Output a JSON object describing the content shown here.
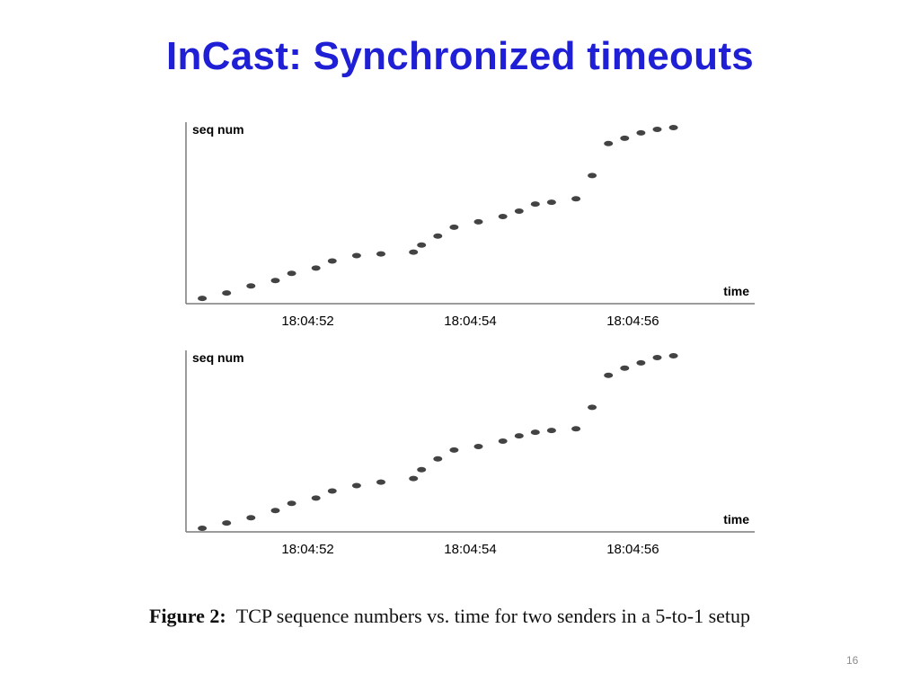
{
  "slide": {
    "title": "InCast: Synchronized timeouts",
    "page_number": "16",
    "title_color": "#1f1fd6"
  },
  "caption": {
    "label": "Figure 2:",
    "text": "TCP sequence numbers vs.  time for two senders in a 5-to-1 setup"
  },
  "chart_data": [
    {
      "type": "scatter",
      "ylabel": "seq num",
      "xlabel": "time",
      "x_ticks": [
        {
          "t": 1.5,
          "label": "18:04:52"
        },
        {
          "t": 3.5,
          "label": "18:04:54"
        },
        {
          "t": 5.5,
          "label": "18:04:56"
        }
      ],
      "xlim": [
        0,
        7
      ],
      "ylim": [
        0,
        100
      ],
      "grid": false,
      "series": [
        {
          "color": "#222222",
          "points": [
            [
              0.2,
              3
            ],
            [
              0.5,
              6
            ],
            [
              0.8,
              10
            ],
            [
              1.1,
              13
            ],
            [
              1.3,
              17
            ],
            [
              1.6,
              20
            ],
            [
              1.8,
              24
            ],
            [
              2.1,
              27
            ],
            [
              2.4,
              28
            ],
            [
              2.8,
              29
            ],
            [
              2.9,
              33
            ],
            [
              3.1,
              38
            ],
            [
              3.3,
              43
            ],
            [
              3.6,
              46
            ],
            [
              3.9,
              49
            ],
            [
              4.1,
              52
            ],
            [
              4.3,
              56
            ],
            [
              4.5,
              57
            ],
            [
              4.8,
              59
            ],
            [
              5.0,
              72
            ],
            [
              5.2,
              90
            ],
            [
              5.4,
              93
            ],
            [
              5.6,
              96
            ],
            [
              5.8,
              98
            ],
            [
              6.0,
              99
            ]
          ]
        }
      ]
    },
    {
      "type": "scatter",
      "ylabel": "seq num",
      "xlabel": "time",
      "x_ticks": [
        {
          "t": 1.5,
          "label": "18:04:52"
        },
        {
          "t": 3.5,
          "label": "18:04:54"
        },
        {
          "t": 5.5,
          "label": "18:04:56"
        }
      ],
      "xlim": [
        0,
        7
      ],
      "ylim": [
        0,
        100
      ],
      "grid": false,
      "series": [
        {
          "color": "#222222",
          "points": [
            [
              0.2,
              2
            ],
            [
              0.5,
              5
            ],
            [
              0.8,
              8
            ],
            [
              1.1,
              12
            ],
            [
              1.3,
              16
            ],
            [
              1.6,
              19
            ],
            [
              1.8,
              23
            ],
            [
              2.1,
              26
            ],
            [
              2.4,
              28
            ],
            [
              2.8,
              30
            ],
            [
              2.9,
              35
            ],
            [
              3.1,
              41
            ],
            [
              3.3,
              46
            ],
            [
              3.6,
              48
            ],
            [
              3.9,
              51
            ],
            [
              4.1,
              54
            ],
            [
              4.3,
              56
            ],
            [
              4.5,
              57
            ],
            [
              4.8,
              58
            ],
            [
              5.0,
              70
            ],
            [
              5.2,
              88
            ],
            [
              5.4,
              92
            ],
            [
              5.6,
              95
            ],
            [
              5.8,
              98
            ],
            [
              6.0,
              99
            ]
          ]
        }
      ]
    }
  ]
}
